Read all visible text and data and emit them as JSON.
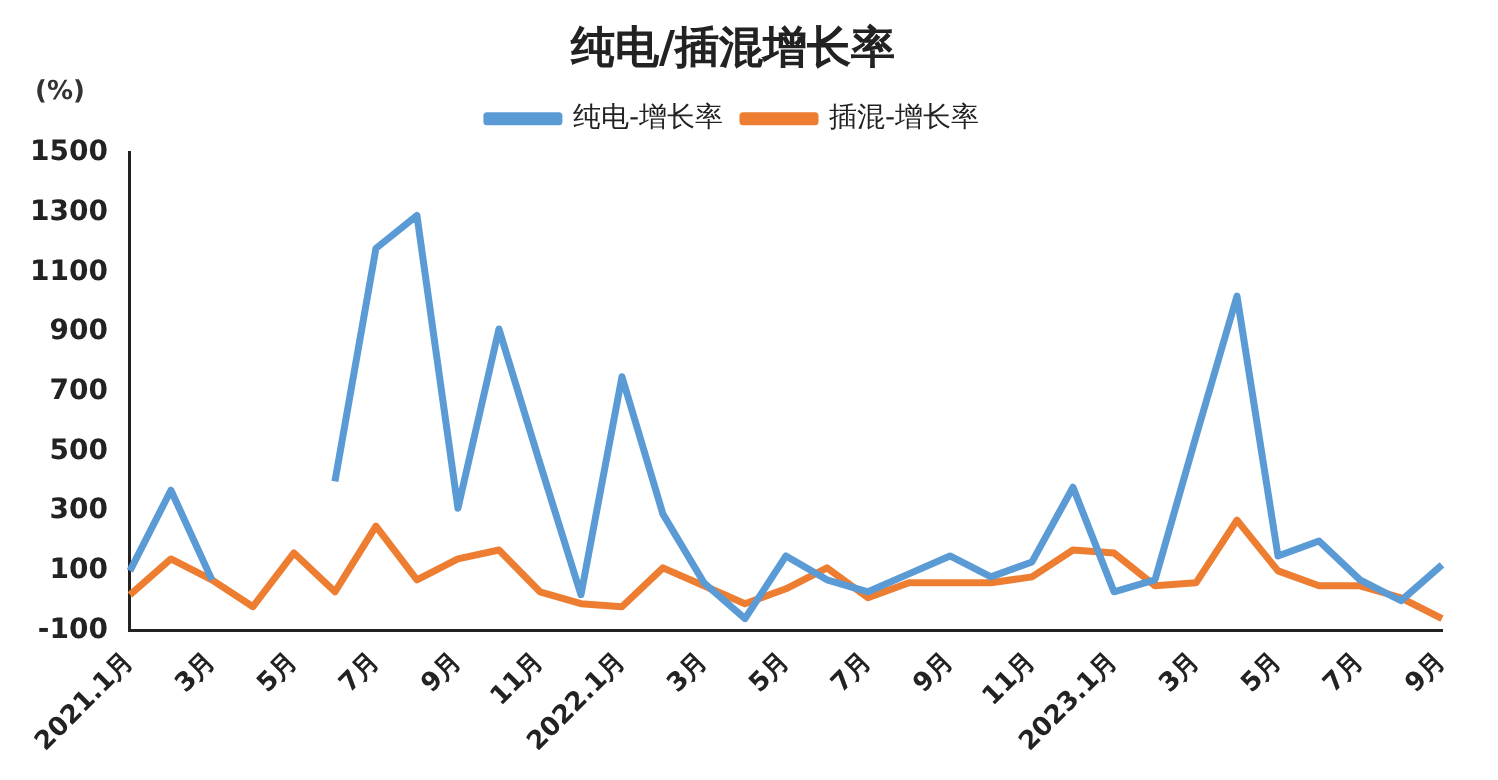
{
  "chart_data": {
    "type": "line",
    "title": "纯电/插混增长率",
    "ylabel": "(%)",
    "categories": [
      "2021.1月",
      null,
      "3月",
      null,
      "5月",
      null,
      "7月",
      null,
      "9月",
      null,
      "11月",
      null,
      "2022.1月",
      null,
      "3月",
      null,
      "5月",
      null,
      "7月",
      null,
      "9月",
      null,
      "11月",
      null,
      "2023.1月",
      null,
      "3月",
      null,
      "5月",
      null,
      "7月",
      null,
      "9月"
    ],
    "series": [
      {
        "name": "纯电-增长率",
        "color": "#5b9bd5",
        "values": [
          100,
          370,
          70,
          null,
          null,
          400,
          1180,
          1290,
          310,
          910,
          460,
          20,
          750,
          290,
          60,
          -60,
          150,
          70,
          30,
          90,
          150,
          80,
          130,
          380,
          30,
          70,
          550,
          1020,
          150,
          200,
          70,
          0,
          120
        ]
      },
      {
        "name": "插混-增长率",
        "color": "#ed7d31",
        "values": [
          20,
          140,
          70,
          -20,
          160,
          30,
          250,
          70,
          140,
          170,
          30,
          -10,
          -20,
          110,
          50,
          -10,
          40,
          110,
          10,
          60,
          60,
          60,
          80,
          170,
          160,
          50,
          60,
          270,
          100,
          50,
          50,
          10,
          -60
        ]
      }
    ],
    "ylim": [
      -100,
      1500
    ],
    "yticks": [
      -100,
      100,
      300,
      500,
      700,
      900,
      1100,
      1300,
      1500
    ],
    "grid": false,
    "legend": "top",
    "marker": "none",
    "line_style": "solid"
  }
}
